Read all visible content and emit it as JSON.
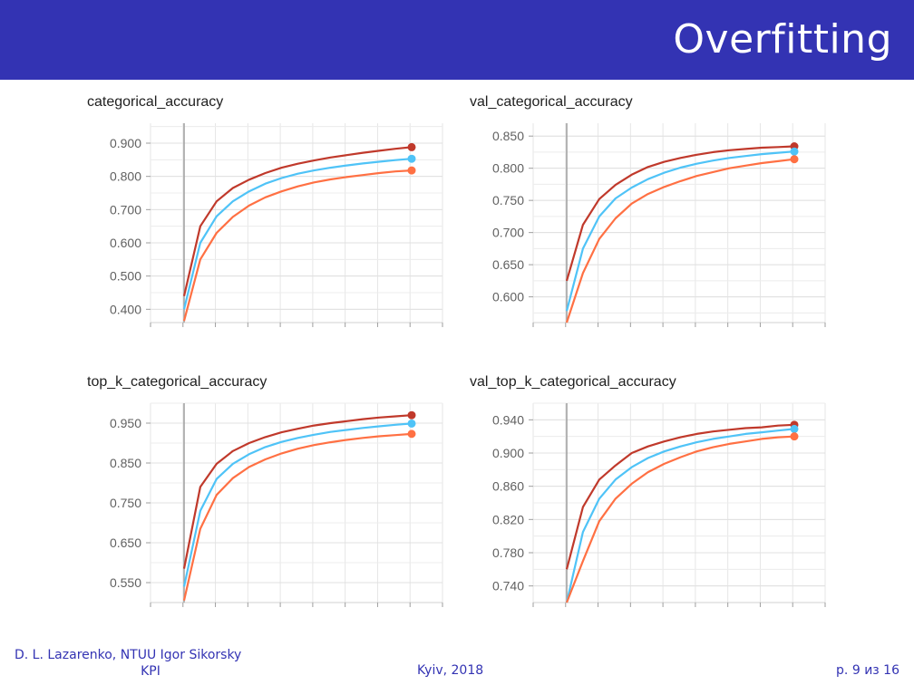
{
  "header": {
    "title": "Overfitting"
  },
  "footer": {
    "author_line1": "D. L. Lazarenko, NTUU Igor Sikorsky",
    "author_line2": "KPI",
    "center": "Kyiv, 2018",
    "page": "р. 9 из 16"
  },
  "colors": {
    "series_dark": "#c0392b",
    "series_blue": "#4fc3f7",
    "series_orange": "#ff7043"
  },
  "chart_data": [
    {
      "type": "line",
      "title": "categorical_accuracy",
      "ylim": [
        0.36,
        0.96
      ],
      "yticks": [
        0.9,
        0.8,
        0.7,
        0.6,
        0.5,
        0.4
      ],
      "tick_labels": [
        "0.900",
        "0.800",
        "0.700",
        "0.600",
        "0.500",
        "0.400"
      ],
      "grid": true,
      "x": [
        0,
        1,
        2,
        3,
        4,
        5,
        6,
        7,
        8,
        9,
        10,
        11,
        12,
        13,
        14
      ],
      "series": [
        {
          "color": "#c0392b",
          "values": [
            0.44,
            0.65,
            0.725,
            0.765,
            0.79,
            0.81,
            0.826,
            0.838,
            0.848,
            0.857,
            0.864,
            0.871,
            0.877,
            0.883,
            0.888
          ]
        },
        {
          "color": "#4fc3f7",
          "values": [
            0.4,
            0.6,
            0.68,
            0.725,
            0.755,
            0.778,
            0.795,
            0.808,
            0.818,
            0.826,
            0.833,
            0.839,
            0.844,
            0.849,
            0.853
          ]
        },
        {
          "color": "#ff7043",
          "values": [
            0.365,
            0.55,
            0.63,
            0.678,
            0.712,
            0.737,
            0.755,
            0.77,
            0.782,
            0.791,
            0.798,
            0.804,
            0.81,
            0.815,
            0.818
          ]
        }
      ]
    },
    {
      "type": "line",
      "title": "val_categorical_accuracy",
      "ylim": [
        0.56,
        0.87
      ],
      "yticks": [
        0.85,
        0.8,
        0.75,
        0.7,
        0.65,
        0.6
      ],
      "tick_labels": [
        "0.850",
        "0.800",
        "0.750",
        "0.700",
        "0.650",
        "0.600"
      ],
      "grid": true,
      "x": [
        0,
        1,
        2,
        3,
        4,
        5,
        6,
        7,
        8,
        9,
        10,
        11,
        12,
        13,
        14
      ],
      "series": [
        {
          "color": "#c0392b",
          "values": [
            0.625,
            0.712,
            0.752,
            0.774,
            0.79,
            0.802,
            0.81,
            0.816,
            0.821,
            0.825,
            0.828,
            0.83,
            0.832,
            0.833,
            0.834
          ]
        },
        {
          "color": "#4fc3f7",
          "values": [
            0.578,
            0.675,
            0.725,
            0.753,
            0.77,
            0.783,
            0.793,
            0.801,
            0.807,
            0.812,
            0.816,
            0.819,
            0.822,
            0.824,
            0.826
          ]
        },
        {
          "color": "#ff7043",
          "values": [
            0.56,
            0.637,
            0.69,
            0.722,
            0.745,
            0.76,
            0.771,
            0.78,
            0.788,
            0.794,
            0.8,
            0.804,
            0.808,
            0.811,
            0.814
          ]
        }
      ]
    },
    {
      "type": "line",
      "title": "top_k_categorical_accuracy",
      "ylim": [
        0.5,
        1.0
      ],
      "yticks": [
        0.95,
        0.85,
        0.75,
        0.65,
        0.55
      ],
      "tick_labels": [
        "0.950",
        "0.850",
        "0.750",
        "0.650",
        "0.550"
      ],
      "grid": true,
      "x": [
        0,
        1,
        2,
        3,
        4,
        5,
        6,
        7,
        8,
        9,
        10,
        11,
        12,
        13,
        14
      ],
      "series": [
        {
          "color": "#c0392b",
          "values": [
            0.585,
            0.79,
            0.848,
            0.88,
            0.9,
            0.915,
            0.927,
            0.936,
            0.944,
            0.95,
            0.955,
            0.96,
            0.964,
            0.967,
            0.97
          ]
        },
        {
          "color": "#4fc3f7",
          "values": [
            0.54,
            0.73,
            0.81,
            0.848,
            0.872,
            0.89,
            0.903,
            0.913,
            0.921,
            0.928,
            0.933,
            0.938,
            0.942,
            0.946,
            0.949
          ]
        },
        {
          "color": "#ff7043",
          "values": [
            0.505,
            0.685,
            0.77,
            0.812,
            0.84,
            0.859,
            0.874,
            0.886,
            0.895,
            0.902,
            0.908,
            0.913,
            0.917,
            0.92,
            0.923
          ]
        }
      ]
    },
    {
      "type": "line",
      "title": "val_top_k_categorical_accuracy",
      "ylim": [
        0.72,
        0.96
      ],
      "yticks": [
        0.94,
        0.9,
        0.86,
        0.82,
        0.78,
        0.74
      ],
      "tick_labels": [
        "0.940",
        "0.900",
        "0.860",
        "0.820",
        "0.780",
        "0.740"
      ],
      "grid": true,
      "x": [
        0,
        1,
        2,
        3,
        4,
        5,
        6,
        7,
        8,
        9,
        10,
        11,
        12,
        13,
        14
      ],
      "series": [
        {
          "color": "#c0392b",
          "values": [
            0.76,
            0.835,
            0.868,
            0.885,
            0.9,
            0.908,
            0.914,
            0.919,
            0.923,
            0.926,
            0.928,
            0.93,
            0.931,
            0.933,
            0.934
          ]
        },
        {
          "color": "#4fc3f7",
          "values": [
            0.72,
            0.805,
            0.845,
            0.868,
            0.883,
            0.894,
            0.902,
            0.908,
            0.913,
            0.917,
            0.92,
            0.923,
            0.925,
            0.927,
            0.929
          ]
        },
        {
          "color": "#ff7043",
          "values": [
            0.72,
            0.77,
            0.818,
            0.845,
            0.863,
            0.877,
            0.887,
            0.895,
            0.902,
            0.907,
            0.911,
            0.914,
            0.917,
            0.919,
            0.92
          ]
        }
      ]
    }
  ]
}
